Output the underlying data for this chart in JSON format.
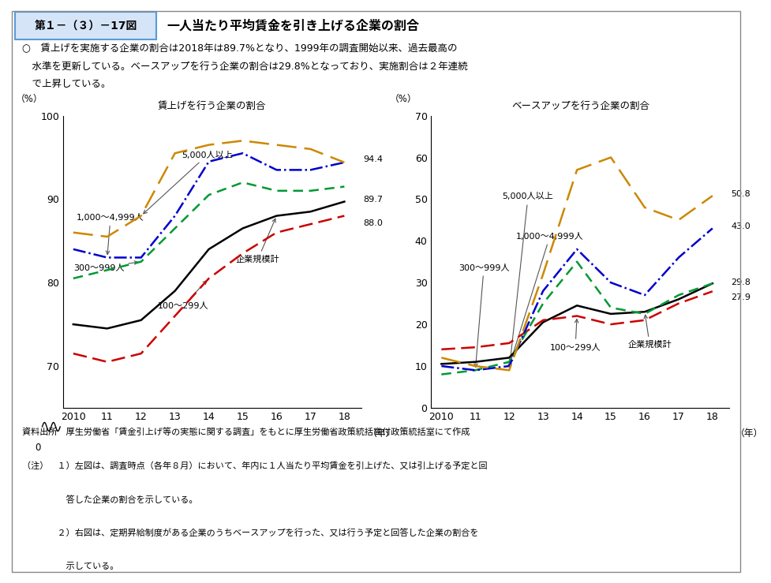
{
  "title_box": "第１－（３）－17図",
  "title_main": "一人当たり平均賃金を引き上げる企業の割合",
  "desc_line1": "○　賃上げを実施する企業の割合は2018年は89.7%となり、1999年の調査開始以来、過去最高の",
  "desc_line2": "　水準を更新している。ベースアップを行う企業の割合は29.8%となっており、実施割合は２年連続",
  "desc_line3": "　で上昇している。",
  "left_title": "賃上げを行う企業の割合",
  "right_title": "ベースアップを行う企業の割合",
  "years_labels": [
    "2010",
    "11",
    "12",
    "13",
    "14",
    "15",
    "16",
    "17",
    "18"
  ],
  "left": {
    "kigyokei": [
      75.0,
      74.5,
      75.5,
      79.0,
      84.0,
      86.5,
      88.0,
      88.5,
      89.7
    ],
    "100_299": [
      71.5,
      70.5,
      71.5,
      76.0,
      80.5,
      83.5,
      86.0,
      87.0,
      88.0
    ],
    "300_999": [
      80.5,
      81.5,
      82.5,
      86.5,
      90.5,
      92.0,
      91.0,
      91.0,
      91.5
    ],
    "1000_4999": [
      84.0,
      83.0,
      83.0,
      88.0,
      94.5,
      95.5,
      93.5,
      93.5,
      94.4
    ],
    "5000plus": [
      86.0,
      85.5,
      88.0,
      95.5,
      96.5,
      97.0,
      96.5,
      96.0,
      94.4
    ]
  },
  "right": {
    "kigyokei": [
      10.5,
      11.0,
      12.0,
      20.5,
      24.5,
      22.5,
      23.0,
      26.0,
      29.8
    ],
    "100_299": [
      14.0,
      14.5,
      15.5,
      21.0,
      22.0,
      20.0,
      21.0,
      25.0,
      27.9
    ],
    "300_999": [
      8.0,
      9.0,
      11.0,
      25.0,
      35.0,
      24.0,
      22.5,
      27.0,
      29.8
    ],
    "1000_4999": [
      10.0,
      9.0,
      10.0,
      28.0,
      38.0,
      30.0,
      27.0,
      36.0,
      43.0
    ],
    "5000plus": [
      12.0,
      10.0,
      9.0,
      32.0,
      57.0,
      60.0,
      48.0,
      45.0,
      50.8
    ]
  },
  "left_ylim": [
    65,
    100
  ],
  "left_yticks": [
    70,
    80,
    90,
    100
  ],
  "right_ylim": [
    0,
    70
  ],
  "right_yticks": [
    0,
    10,
    20,
    30,
    40,
    50,
    60,
    70
  ],
  "colors": {
    "kigyokei": "#000000",
    "100_299": "#cc0000",
    "300_999": "#009933",
    "1000_4999": "#0000cc",
    "5000plus": "#cc8800"
  },
  "source_text": "資料出所　厚生労働省「賃金引上げ等の実態に関する調査」をもとに厚生労働省政策統括官付政策統括室にて作成",
  "note_lines": [
    "（注）　１）左図は、調査時点（各年８月）において、年内に１人当たり平均賃金を引上げた、又は引上げる予定と回",
    "　　　　　答した企業の割合を示している。",
    "　　　　２）右図は、定期昇給制度がある企業のうちベースアップを行った、又は行う予定と回答した企業の割合を",
    "　　　　　示している。"
  ]
}
